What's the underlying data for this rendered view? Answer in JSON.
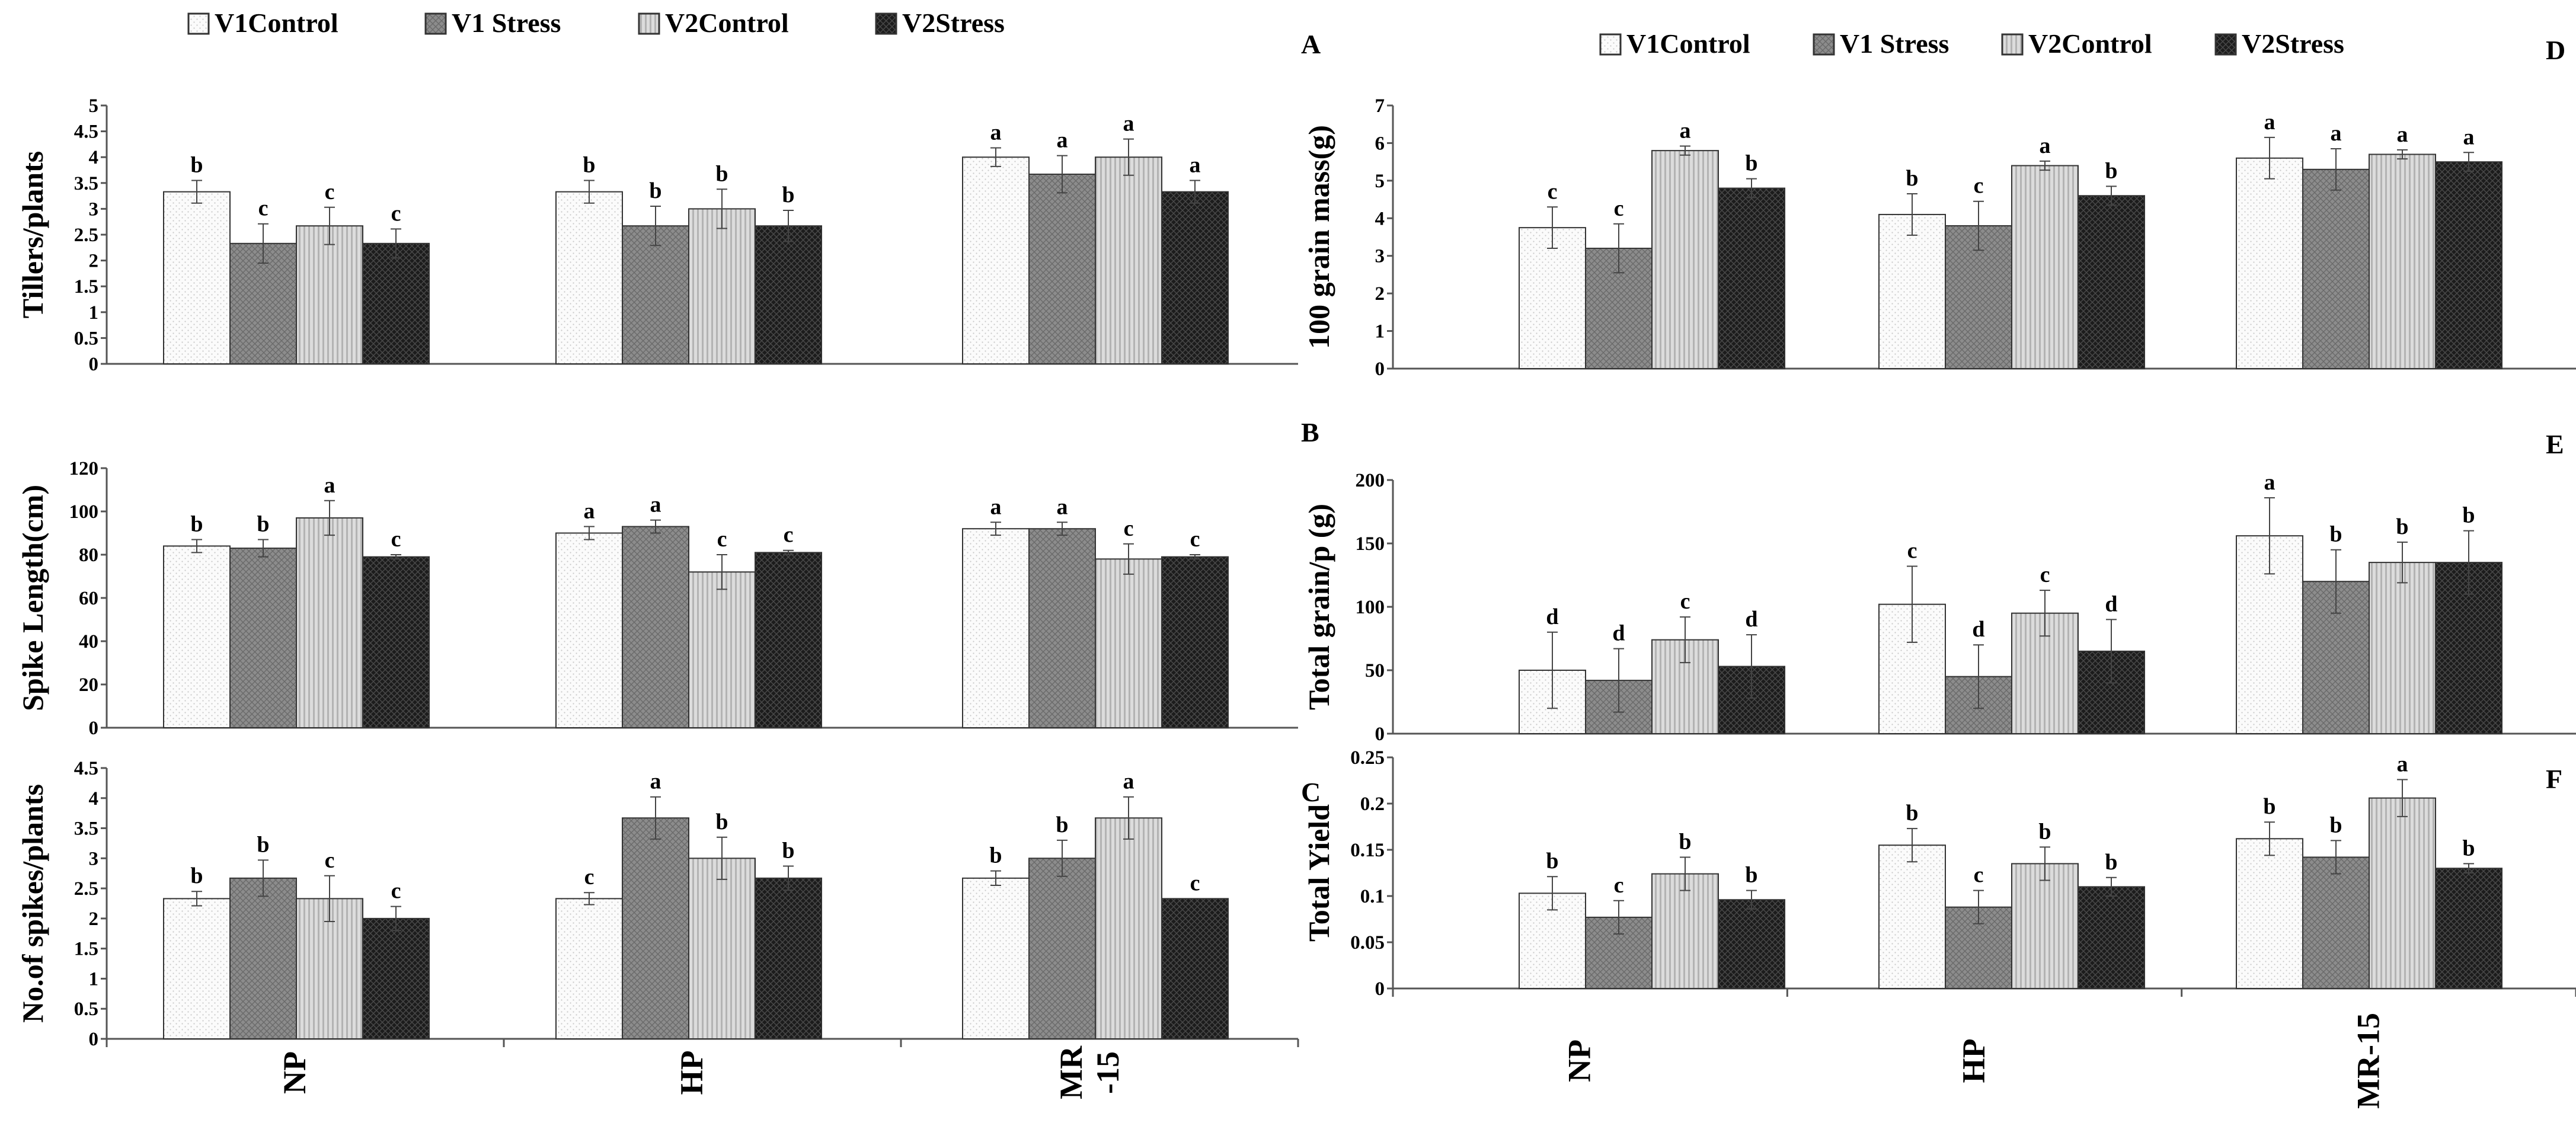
{
  "legend": [
    "V1Control",
    "V1 Stress",
    "V2Control",
    "V2Stress"
  ],
  "colors": {
    "bar_stroke": "#333333",
    "axis": "#555555"
  },
  "chart_data": [
    {
      "panel": "A",
      "type": "bar",
      "ylabel": "Tillers/plants",
      "ylim": [
        0,
        5
      ],
      "yticks": [
        "0",
        "0.5",
        "1",
        "1.5",
        "2",
        "2.5",
        "3",
        "3.5",
        "4",
        "4.5",
        "5"
      ],
      "categories": [
        "NP",
        "HP",
        "MR -15"
      ],
      "series": [
        {
          "name": "V1Control",
          "values": [
            3.33,
            3.33,
            4.0
          ],
          "errors": [
            0.22,
            0.22,
            0.18
          ],
          "letters": [
            "b",
            "b",
            "a"
          ]
        },
        {
          "name": "V1 Stress",
          "values": [
            2.33,
            2.67,
            3.67
          ],
          "errors": [
            0.38,
            0.38,
            0.36
          ],
          "letters": [
            "c",
            "b",
            "a"
          ]
        },
        {
          "name": "V2Control",
          "values": [
            2.67,
            3.0,
            4.0
          ],
          "errors": [
            0.36,
            0.38,
            0.35
          ],
          "letters": [
            "c",
            "b",
            "a"
          ]
        },
        {
          "name": "V2Stress",
          "values": [
            2.33,
            2.67,
            3.33
          ],
          "errors": [
            0.28,
            0.3,
            0.22
          ],
          "letters": [
            "c",
            "b",
            "a"
          ]
        }
      ]
    },
    {
      "panel": "B",
      "type": "bar",
      "ylabel": "Spike Length(cm)",
      "ylim": [
        0,
        120
      ],
      "yticks": [
        "0",
        "20",
        "40",
        "60",
        "80",
        "100",
        "120"
      ],
      "categories": [
        "NP",
        "HP",
        "MR -15"
      ],
      "series": [
        {
          "name": "V1Control",
          "values": [
            84,
            90,
            92
          ],
          "errors": [
            3,
            3,
            3
          ],
          "letters": [
            "b",
            "a",
            "a"
          ]
        },
        {
          "name": "V1 Stress",
          "values": [
            83,
            93,
            92
          ],
          "errors": [
            4,
            3,
            3
          ],
          "letters": [
            "b",
            "a",
            "a"
          ]
        },
        {
          "name": "V2Control",
          "values": [
            97,
            72,
            78
          ],
          "errors": [
            8,
            8,
            7
          ],
          "letters": [
            "a",
            "c",
            "c"
          ]
        },
        {
          "name": "V2Stress",
          "values": [
            79,
            81,
            79
          ],
          "errors": [
            1,
            1,
            1
          ],
          "letters": [
            "c",
            "c",
            "c"
          ]
        }
      ]
    },
    {
      "panel": "C",
      "type": "bar",
      "ylabel": "No.of spikes/plants",
      "ylim": [
        0,
        4.5
      ],
      "yticks": [
        "0",
        "0.5",
        "1",
        "1.5",
        "2",
        "2.5",
        "3",
        "3.5",
        "4",
        "4.5"
      ],
      "categories": [
        "NP",
        "HP",
        "MR -15"
      ],
      "series": [
        {
          "name": "V1Control",
          "values": [
            2.33,
            2.33,
            2.67
          ],
          "errors": [
            0.12,
            0.1,
            0.12
          ],
          "letters": [
            "b",
            "c",
            "b"
          ]
        },
        {
          "name": "V1 Stress",
          "values": [
            2.67,
            3.67,
            3.0
          ],
          "errors": [
            0.3,
            0.35,
            0.3
          ],
          "letters": [
            "b",
            "a",
            "b"
          ]
        },
        {
          "name": "V2Control",
          "values": [
            2.33,
            3.0,
            3.67
          ],
          "errors": [
            0.38,
            0.35,
            0.35
          ],
          "letters": [
            "c",
            "b",
            "a"
          ]
        },
        {
          "name": "V2Stress",
          "values": [
            2.0,
            2.67,
            2.33
          ],
          "errors": [
            0.2,
            0.2,
            0.0
          ],
          "letters": [
            "c",
            "b",
            "c"
          ]
        }
      ]
    },
    {
      "panel": "D",
      "type": "bar",
      "ylabel": "100 grain mass(g)",
      "ylim": [
        0,
        7
      ],
      "yticks": [
        "0",
        "1",
        "2",
        "3",
        "4",
        "5",
        "6",
        "7"
      ],
      "categories": [
        "NP",
        "HP",
        "MR-15"
      ],
      "series": [
        {
          "name": "V1Control",
          "values": [
            3.75,
            4.1,
            5.6
          ],
          "errors": [
            0.55,
            0.55,
            0.55
          ],
          "letters": [
            "c",
            "b",
            "a"
          ]
        },
        {
          "name": "V1 Stress",
          "values": [
            3.2,
            3.8,
            5.3
          ],
          "errors": [
            0.65,
            0.65,
            0.55
          ],
          "letters": [
            "c",
            "c",
            "a"
          ]
        },
        {
          "name": "V2Control",
          "values": [
            5.8,
            5.4,
            5.7
          ],
          "errors": [
            0.12,
            0.12,
            0.12
          ],
          "letters": [
            "a",
            "a",
            "a"
          ]
        },
        {
          "name": "V2Stress",
          "values": [
            4.8,
            4.6,
            5.5
          ],
          "errors": [
            0.25,
            0.25,
            0.25
          ],
          "letters": [
            "b",
            "b",
            "a"
          ]
        }
      ]
    },
    {
      "panel": "E",
      "type": "bar",
      "ylabel": "Total grain/p (g)",
      "ylim": [
        0,
        200
      ],
      "yticks": [
        "0",
        "50",
        "100",
        "150",
        "200"
      ],
      "categories": [
        "NP",
        "HP",
        "MR-15"
      ],
      "series": [
        {
          "name": "V1Control",
          "values": [
            50,
            102,
            156
          ],
          "errors": [
            30,
            30,
            30
          ],
          "letters": [
            "d",
            "c",
            "a"
          ]
        },
        {
          "name": "V1 Stress",
          "values": [
            42,
            45,
            120
          ],
          "errors": [
            25,
            25,
            25
          ],
          "letters": [
            "d",
            "d",
            "b"
          ]
        },
        {
          "name": "V2Control",
          "values": [
            74,
            95,
            135
          ],
          "errors": [
            18,
            18,
            16
          ],
          "letters": [
            "c",
            "c",
            "b"
          ]
        },
        {
          "name": "V2Stress",
          "values": [
            53,
            65,
            135
          ],
          "errors": [
            25,
            25,
            25
          ],
          "letters": [
            "d",
            "d",
            "b"
          ]
        }
      ]
    },
    {
      "panel": "F",
      "type": "bar",
      "ylabel": "Total  Yield",
      "ylim": [
        0,
        0.25
      ],
      "yticks": [
        "0",
        "0.05",
        "0.1",
        "0.15",
        "0.2",
        "0.25"
      ],
      "categories": [
        "NP",
        "HP",
        "MR-15"
      ],
      "series": [
        {
          "name": "V1Control",
          "values": [
            0.103,
            0.155,
            0.162
          ],
          "errors": [
            0.018,
            0.018,
            0.018
          ],
          "letters": [
            "b",
            "b",
            "b"
          ]
        },
        {
          "name": "V1 Stress",
          "values": [
            0.077,
            0.088,
            0.142
          ],
          "errors": [
            0.018,
            0.018,
            0.018
          ],
          "letters": [
            "c",
            "c",
            "b"
          ]
        },
        {
          "name": "V2Control",
          "values": [
            0.124,
            0.135,
            0.206
          ],
          "errors": [
            0.018,
            0.018,
            0.02
          ],
          "letters": [
            "b",
            "b",
            "a"
          ]
        },
        {
          "name": "V2Stress",
          "values": [
            0.096,
            0.11,
            0.13
          ],
          "errors": [
            0.01,
            0.01,
            0.005
          ],
          "letters": [
            "b",
            "b",
            "b"
          ]
        }
      ]
    }
  ]
}
